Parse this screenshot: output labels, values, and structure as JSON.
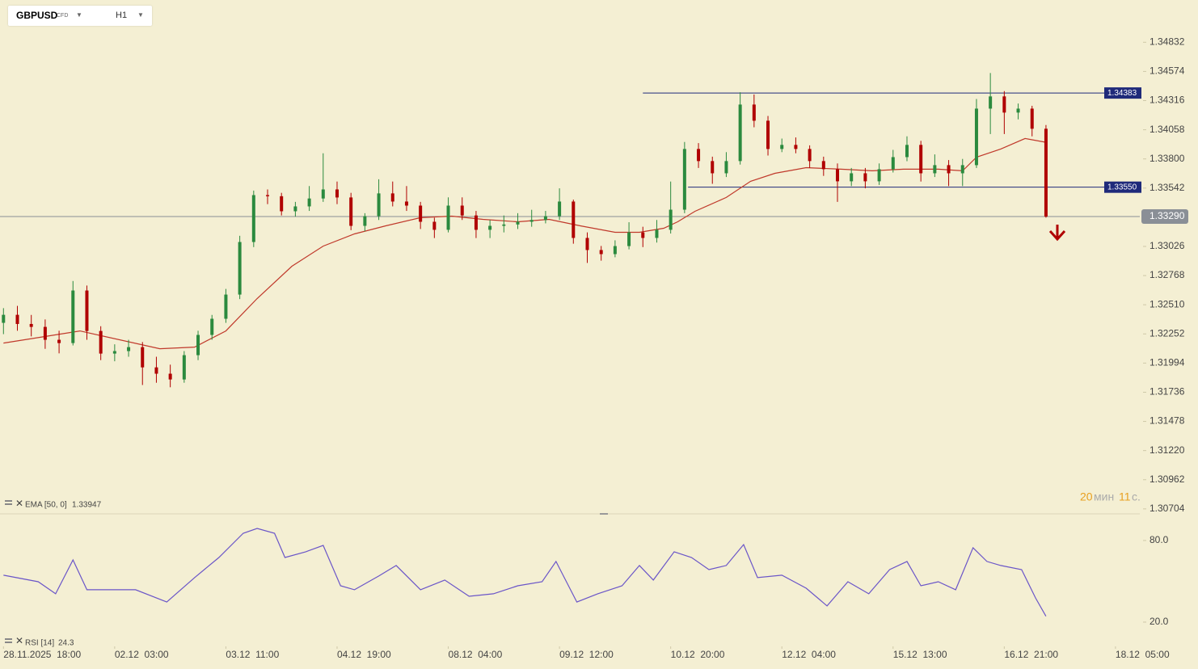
{
  "symbol": {
    "name": "GBPUSD",
    "type": "CFD",
    "timeframe": "H1"
  },
  "chart_data": {
    "type": "candlestick",
    "up_color": "#2b8a3e",
    "down_color": "#b00000",
    "xlim": [
      -1,
      327
    ],
    "xticks": [
      {
        "value": 0,
        "label": "28.11.2025  18:00"
      },
      {
        "value": 32,
        "label": "02.12  03:00"
      },
      {
        "value": 64,
        "label": "03.12  11:00"
      },
      {
        "value": 96,
        "label": "04.12  19:00"
      },
      {
        "value": 128,
        "label": "08.12  04:00"
      },
      {
        "value": 160,
        "label": "09.12  12:00"
      },
      {
        "value": 192,
        "label": "10.12  20:00"
      },
      {
        "value": 224,
        "label": "12.12  04:00"
      },
      {
        "value": 256,
        "label": "15.12  13:00"
      },
      {
        "value": 288,
        "label": "16.12  21:00"
      },
      {
        "value": 320,
        "label": "18.12  05:00"
      }
    ],
    "ylim": [
      1.3066,
      1.3492
    ],
    "yticks": [
      1.34832,
      1.34574,
      1.34316,
      {
        "value": 1.34058,
        "label": "1.34058"
      },
      {
        "value": 1.338,
        "label": "1.33800"
      },
      1.33542,
      1.33026,
      1.32768,
      {
        "value": 1.3251,
        "label": "1.32510"
      },
      1.32252,
      1.31994,
      1.31736,
      1.31478,
      {
        "value": 1.3122,
        "label": "1.31220"
      },
      1.30962,
      1.30704
    ],
    "x": [
      0,
      4,
      8,
      12,
      16,
      20,
      24,
      28,
      32,
      36,
      40,
      44,
      48,
      52,
      56,
      60,
      64,
      68,
      72,
      76,
      80,
      84,
      88,
      92,
      96,
      100,
      104,
      108,
      112,
      116,
      120,
      124,
      128,
      132,
      136,
      140,
      144,
      148,
      152,
      156,
      160,
      164,
      168,
      172,
      176,
      180,
      184,
      188,
      192,
      196,
      200,
      204,
      208,
      212,
      216,
      220,
      224,
      228,
      232,
      236,
      240,
      244,
      248,
      252,
      256,
      260,
      264,
      268,
      272,
      276,
      280,
      284,
      288,
      292,
      296,
      300
    ],
    "ohlc": [
      [
        1.3235,
        1.3248,
        1.3225,
        1.32421
      ],
      [
        1.32421,
        1.325,
        1.3228,
        1.3234
      ],
      [
        1.3234,
        1.3242,
        1.3223,
        1.32314
      ],
      [
        1.32314,
        1.3238,
        1.3212,
        1.322
      ],
      [
        1.322,
        1.3228,
        1.3208,
        1.32171
      ],
      [
        1.32171,
        1.3272,
        1.3215,
        1.32636
      ],
      [
        1.32636,
        1.3268,
        1.322,
        1.32278
      ],
      [
        1.32278,
        1.3232,
        1.3202,
        1.32078
      ],
      [
        1.32078,
        1.3216,
        1.3201,
        1.321
      ],
      [
        1.321,
        1.322,
        1.3205,
        1.32135
      ],
      [
        1.32135,
        1.3218,
        1.318,
        1.31956
      ],
      [
        1.31956,
        1.3205,
        1.3182,
        1.319
      ],
      [
        1.319,
        1.3198,
        1.3178,
        1.31849
      ],
      [
        1.31849,
        1.321,
        1.3182,
        1.32064
      ],
      [
        1.32064,
        1.3228,
        1.3202,
        1.32243
      ],
      [
        1.32243,
        1.3242,
        1.322,
        1.32386
      ],
      [
        1.32386,
        1.3265,
        1.3235,
        1.326
      ],
      [
        1.326,
        1.3312,
        1.3256,
        1.33065
      ],
      [
        1.33065,
        1.3352,
        1.3302,
        1.3348
      ],
      [
        1.3348,
        1.3353,
        1.334,
        1.3347
      ],
      [
        1.3347,
        1.335,
        1.333,
        1.33337
      ],
      [
        1.33337,
        1.3342,
        1.3329,
        1.3338
      ],
      [
        1.3338,
        1.3356,
        1.3334,
        1.3345
      ],
      [
        1.3345,
        1.3385,
        1.3342,
        1.3353
      ],
      [
        1.3353,
        1.336,
        1.334,
        1.33459
      ],
      [
        1.33459,
        1.335,
        1.3317,
        1.33208
      ],
      [
        1.33208,
        1.3332,
        1.3316,
        1.33294
      ],
      [
        1.33294,
        1.3362,
        1.3326,
        1.33495
      ],
      [
        1.33495,
        1.336,
        1.3338,
        1.33423
      ],
      [
        1.33423,
        1.3356,
        1.3334,
        1.33387
      ],
      [
        1.33387,
        1.3342,
        1.3318,
        1.33244
      ],
      [
        1.33244,
        1.3328,
        1.331,
        1.33173
      ],
      [
        1.33173,
        1.3346,
        1.3315,
        1.33387
      ],
      [
        1.33387,
        1.3346,
        1.3326,
        1.333
      ],
      [
        1.333,
        1.3334,
        1.331,
        1.33173
      ],
      [
        1.33173,
        1.3326,
        1.331,
        1.33208
      ],
      [
        1.33208,
        1.333,
        1.3315,
        1.3322
      ],
      [
        1.3322,
        1.3332,
        1.3318,
        1.33244
      ],
      [
        1.33244,
        1.3335,
        1.332,
        1.3326
      ],
      [
        1.3326,
        1.3334,
        1.3323,
        1.33294
      ],
      [
        1.33294,
        1.3354,
        1.3326,
        1.33423
      ],
      [
        1.33423,
        1.3344,
        1.3305,
        1.33101
      ],
      [
        1.33101,
        1.3315,
        1.3288,
        1.32994
      ],
      [
        1.32994,
        1.3303,
        1.329,
        1.32958
      ],
      [
        1.32958,
        1.3308,
        1.3293,
        1.33029
      ],
      [
        1.33029,
        1.3324,
        1.33,
        1.3315
      ],
      [
        1.3315,
        1.332,
        1.3302,
        1.33101
      ],
      [
        1.33101,
        1.3326,
        1.3306,
        1.33173
      ],
      [
        1.33173,
        1.336,
        1.3314,
        1.33351
      ],
      [
        1.33351,
        1.3395,
        1.3332,
        1.33888
      ],
      [
        1.33888,
        1.3394,
        1.3372,
        1.33781
      ],
      [
        1.33781,
        1.3382,
        1.3358,
        1.33673
      ],
      [
        1.33673,
        1.3386,
        1.3364,
        1.33781
      ],
      [
        1.33781,
        1.3439,
        1.3375,
        1.34281
      ],
      [
        1.34281,
        1.3437,
        1.3408,
        1.34138
      ],
      [
        1.34138,
        1.3418,
        1.3383,
        1.33888
      ],
      [
        1.33888,
        1.3398,
        1.3386,
        1.33924
      ],
      [
        1.33924,
        1.3399,
        1.3385,
        1.33888
      ],
      [
        1.33888,
        1.3392,
        1.3372,
        1.33781
      ],
      [
        1.33781,
        1.3382,
        1.3365,
        1.33709
      ],
      [
        1.33709,
        1.3376,
        1.3342,
        1.33602
      ],
      [
        1.33602,
        1.3372,
        1.3356,
        1.33673
      ],
      [
        1.33673,
        1.3372,
        1.3354,
        1.33602
      ],
      [
        1.33602,
        1.3376,
        1.3357,
        1.33709
      ],
      [
        1.33709,
        1.3388,
        1.3368,
        1.33816
      ],
      [
        1.33816,
        1.34,
        1.3378,
        1.33924
      ],
      [
        1.33924,
        1.3396,
        1.336,
        1.33673
      ],
      [
        1.33673,
        1.3384,
        1.3364,
        1.33745
      ],
      [
        1.33745,
        1.3379,
        1.3356,
        1.33673
      ],
      [
        1.33673,
        1.338,
        1.3356,
        1.33745
      ],
      [
        1.33745,
        1.3433,
        1.3372,
        1.34245
      ],
      [
        1.34245,
        1.3456,
        1.3402,
        1.34353
      ],
      [
        1.34353,
        1.344,
        1.3402,
        1.3421
      ],
      [
        1.3421,
        1.3429,
        1.3415,
        1.34245
      ],
      [
        1.34245,
        1.3427,
        1.34,
        1.34067
      ],
      [
        1.34067,
        1.341,
        1.3328,
        1.3329
      ]
    ],
    "levels": [
      {
        "value": 1.34383,
        "start_x": 184,
        "color": "#1f2a7a"
      },
      {
        "value": 1.3355,
        "label": "1.33550",
        "start_x": 197,
        "color": "#1f2a7a"
      }
    ],
    "current_price": {
      "value": 1.3329,
      "label": "1.33290",
      "color": "#8a8f96"
    },
    "ema": {
      "name": "EMA [50, 0]",
      "last": 1.33947,
      "color": "#c0392b",
      "x": [
        0,
        22,
        45,
        55,
        64,
        73,
        83,
        92,
        101,
        110,
        120,
        129,
        138,
        148,
        157,
        166,
        176,
        183,
        190,
        194,
        199,
        208,
        215,
        222,
        231,
        241,
        250,
        259,
        269,
        276,
        280,
        287,
        294,
        300
      ],
      "values": [
        1.32171,
        1.32278,
        1.32121,
        1.32135,
        1.32278,
        1.32565,
        1.32851,
        1.33029,
        1.33137,
        1.33208,
        1.3328,
        1.33294,
        1.33265,
        1.33244,
        1.33265,
        1.33208,
        1.33151,
        1.33151,
        1.33187,
        1.33244,
        1.33337,
        1.33459,
        1.33602,
        1.33673,
        1.33723,
        1.33709,
        1.33695,
        1.33709,
        1.33709,
        1.33695,
        1.33816,
        1.33888,
        1.33981,
        1.33947
      ]
    },
    "rsi": {
      "name": "RSI [14]",
      "last": 24.3,
      "color": "#6a55c8",
      "ylim": [
        8.1,
        97.2
      ],
      "yticks": [
        {
          "value": 80,
          "label": "80.0"
        },
        {
          "value": 20,
          "label": "20.0"
        }
      ],
      "x": [
        0,
        10,
        15,
        20,
        24,
        31,
        38,
        47,
        55,
        62,
        69,
        73,
        78,
        81,
        87,
        92,
        97,
        101,
        108,
        113,
        120,
        127,
        134,
        141,
        148,
        155,
        159,
        165,
        171,
        178,
        183,
        187,
        193,
        198,
        203,
        208,
        213,
        217,
        224,
        231,
        237,
        243,
        249,
        255,
        260,
        264,
        269,
        274,
        279,
        283,
        287,
        293,
        297,
        300
      ],
      "values": [
        54.5,
        49.7,
        40.8,
        65.7,
        43.8,
        43.8,
        43.8,
        34.8,
        52.7,
        67.5,
        85.3,
        88.9,
        85.3,
        67.5,
        71.7,
        76.4,
        46.7,
        43.8,
        53.9,
        61.6,
        43.8,
        50.9,
        39.0,
        40.8,
        46.7,
        49.7,
        64.6,
        34.8,
        40.8,
        46.7,
        61.6,
        50.9,
        71.7,
        67.5,
        58.6,
        61.6,
        77.0,
        52.7,
        54.5,
        44.9,
        31.9,
        49.7,
        40.8,
        58.6,
        64.6,
        46.7,
        49.7,
        43.8,
        74.7,
        64.6,
        61.6,
        58.6,
        37.8,
        24.3
      ]
    },
    "timer": {
      "minutes": "20",
      "minutes_unit": "мин",
      "seconds": "11",
      "seconds_unit": "с."
    }
  }
}
